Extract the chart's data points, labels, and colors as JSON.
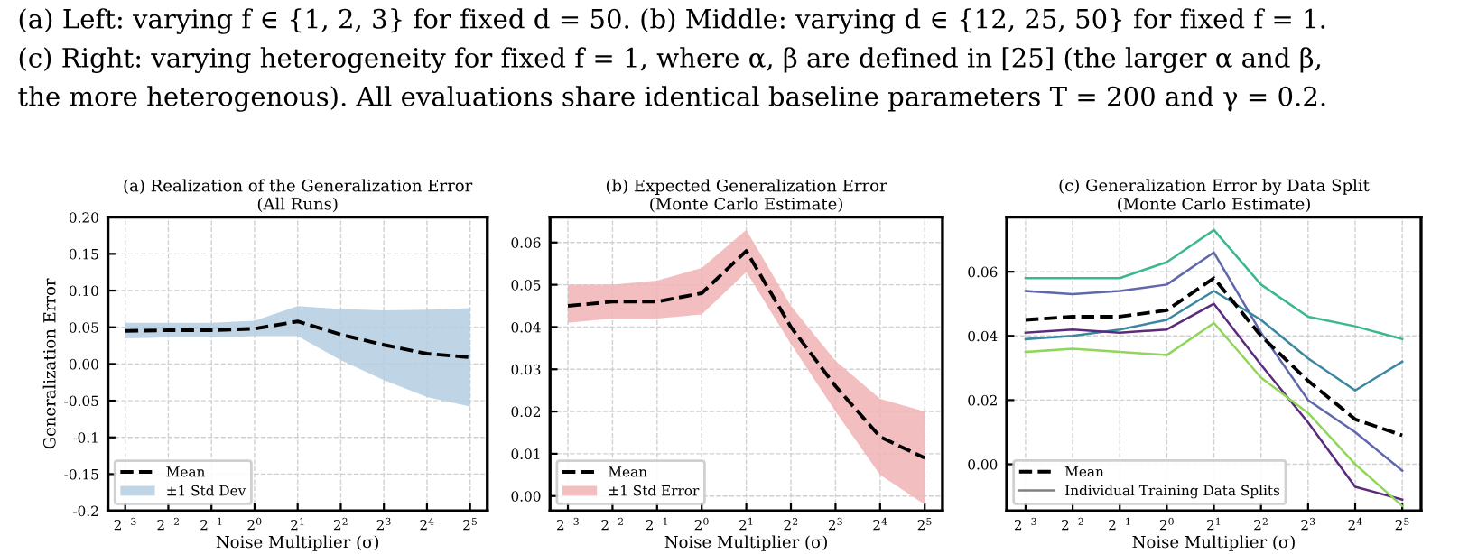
{
  "chart_data": [
    {
      "type": "line",
      "title": "(a) Realization of the Generalization Error\n(All Runs)",
      "xlabel": "Noise Multiplier (σ)",
      "ylabel": "Generalization Error",
      "annotations": [
        "(a) Left: varying f ∈ {1, 2, 3} for fixed d = 50. (b) Middle: varying d ∈ {12, 25, 50} for fixed f = 1.",
        "(c) Right: varying heterogeneity for fixed f = 1, where α, β are defined in [25] (the larger α and β,",
        "the more heterogenous). All evaluations share identical baseline parameters T = 200 and γ = 0.2."
      ],
      "x": [
        0.125,
        0.25,
        0.5,
        1,
        2,
        4,
        8,
        16,
        32
      ],
      "log": "x",
      "series": [
        {
          "name": "Mean",
          "line_style": "dashed",
          "color": "#000000",
          "values": [
            0.045,
            0.046,
            0.046,
            0.048,
            0.058,
            0.04,
            0.026,
            0.014,
            0.009
          ]
        },
        {
          "name": "±1 Std Dev",
          "type": "area",
          "color": "#b4cde0",
          "values": [
            null,
            null,
            null,
            null,
            null,
            null,
            null,
            null,
            null
          ],
          "lower": [
            0.035,
            0.036,
            0.036,
            0.038,
            0.038,
            0.005,
            -0.022,
            -0.045,
            -0.058
          ],
          "upper": [
            0.056,
            0.056,
            0.056,
            0.059,
            0.079,
            0.075,
            0.073,
            0.074,
            0.076
          ]
        }
      ],
      "xlim": [
        0.0947,
        42.2
      ],
      "ylim": [
        -0.2,
        0.2
      ],
      "xticks": [
        {
          "value": 0.125,
          "label": "2$^{−3}$"
        },
        {
          "value": 0.25,
          "label": "2$^{−2}$"
        },
        {
          "value": 0.5,
          "label": "2$^{−1}$"
        },
        {
          "value": 1,
          "label": "2$^{0}$"
        },
        {
          "value": 2,
          "label": "2$^{1}$"
        },
        {
          "value": 4,
          "label": "2$^{2}$"
        },
        {
          "value": 8,
          "label": "2$^{3}$"
        },
        {
          "value": 16,
          "label": "2$^{4}$"
        },
        {
          "value": 32,
          "label": "2$^{5}$"
        }
      ],
      "yticks": [
        -0.2,
        -0.15,
        -0.1,
        -0.05,
        {
          "value": 0,
          "label": "0.00"
        },
        0.05,
        {
          "value": 0.1,
          "label": "0.10"
        },
        0.15,
        {
          "value": 0.2,
          "label": "0.20"
        }
      ],
      "grid": true,
      "legend": "bottom left"
    },
    {
      "type": "line",
      "title": "(b) Expected Generalization Error\n(Monte Carlo Estimate)",
      "xlabel": "Noise Multiplier (σ)",
      "x": [
        0.125,
        0.25,
        0.5,
        1,
        2,
        4,
        8,
        16,
        32
      ],
      "log": "x",
      "series": [
        {
          "name": "Mean",
          "line_style": "dashed",
          "color": "#000000",
          "values": [
            0.045,
            0.046,
            0.046,
            0.048,
            0.058,
            0.04,
            0.026,
            0.014,
            0.009
          ]
        },
        {
          "name": "±1 Std Error",
          "type": "area",
          "color": "#f0b3b5",
          "values": [
            null,
            null,
            null,
            null,
            null,
            null,
            null,
            null,
            null
          ],
          "lower": [
            0.041,
            0.042,
            0.042,
            0.043,
            0.053,
            0.036,
            0.02,
            0.005,
            -0.002
          ],
          "upper": [
            0.05,
            0.05,
            0.051,
            0.054,
            0.063,
            0.045,
            0.032,
            0.023,
            0.02
          ]
        }
      ],
      "xlim": [
        0.0947,
        42.2
      ],
      "ylim": [
        -0.0035,
        0.066
      ],
      "xticks": [
        {
          "value": 0.125,
          "label": "2$^{−3}$"
        },
        {
          "value": 0.25,
          "label": "2$^{−2}$"
        },
        {
          "value": 0.5,
          "label": "2$^{−1}$"
        },
        {
          "value": 1,
          "label": "2$^{0}$"
        },
        {
          "value": 2,
          "label": "2$^{1}$"
        },
        {
          "value": 4,
          "label": "2$^{2}$"
        },
        {
          "value": 8,
          "label": "2$^{3}$"
        },
        {
          "value": 16,
          "label": "2$^{4}$"
        },
        {
          "value": 32,
          "label": "2$^{5}$"
        }
      ],
      "yticks": [
        {
          "value": 0,
          "label": "0.00"
        },
        0.01,
        0.02,
        0.03,
        0.04,
        0.05,
        0.06
      ],
      "grid": true,
      "legend": "bottom left"
    },
    {
      "type": "line",
      "title": "(c) Generalization Error by Data Split\n(Monte Carlo Estimate)",
      "xlabel": "Noise Multiplier (σ)",
      "x": [
        0.125,
        0.25,
        0.5,
        1,
        2,
        4,
        8,
        16,
        32
      ],
      "log": "x",
      "series": [
        {
          "name": "Mean",
          "line_style": "dashed",
          "color": "#000000",
          "values": [
            0.045,
            0.046,
            0.046,
            0.048,
            0.058,
            0.04,
            0.026,
            0.014,
            0.009
          ]
        },
        {
          "name": "Individual Training Data Splits",
          "color": "#808080",
          "values": [
            null,
            null,
            null,
            null,
            null,
            null,
            null,
            null,
            null
          ]
        },
        {
          "color": "#3bb88c",
          "values": [
            0.058,
            0.058,
            0.058,
            0.063,
            0.073,
            0.056,
            0.046,
            0.043,
            0.039
          ]
        },
        {
          "color": "#6067ac",
          "values": [
            0.054,
            0.053,
            0.054,
            0.056,
            0.066,
            0.041,
            0.02,
            0.01,
            -0.002
          ]
        },
        {
          "color": "#3a87a0",
          "values": [
            0.039,
            0.04,
            0.042,
            0.045,
            0.054,
            0.045,
            0.033,
            0.023,
            0.032
          ]
        },
        {
          "color": "#5c2a7c",
          "values": [
            0.041,
            0.042,
            0.041,
            0.042,
            0.05,
            0.031,
            0.013,
            -0.007,
            -0.011
          ]
        },
        {
          "color": "#90d65a",
          "values": [
            0.035,
            0.036,
            0.035,
            0.034,
            0.044,
            0.027,
            0.016,
            0.0,
            -0.013
          ]
        }
      ],
      "xlim": [
        0.0947,
        42.2
      ],
      "ylim": [
        -0.0145,
        0.077
      ],
      "xticks": [
        {
          "value": 0.125,
          "label": "2$^{−3}$"
        },
        {
          "value": 0.25,
          "label": "2$^{−2}$"
        },
        {
          "value": 0.5,
          "label": "2$^{−1}$"
        },
        {
          "value": 1,
          "label": "2$^{0}$"
        },
        {
          "value": 2,
          "label": "2$^{1}$"
        },
        {
          "value": 4,
          "label": "2$^{2}$"
        },
        {
          "value": 8,
          "label": "2$^{3}$"
        },
        {
          "value": 16,
          "label": "2$^{4}$"
        },
        {
          "value": 32,
          "label": "2$^{5}$"
        }
      ],
      "yticks": [
        {
          "value": 0,
          "label": "0.00"
        },
        0.02,
        0.04,
        0.06
      ],
      "grid": true,
      "legend": "bottom left"
    }
  ]
}
